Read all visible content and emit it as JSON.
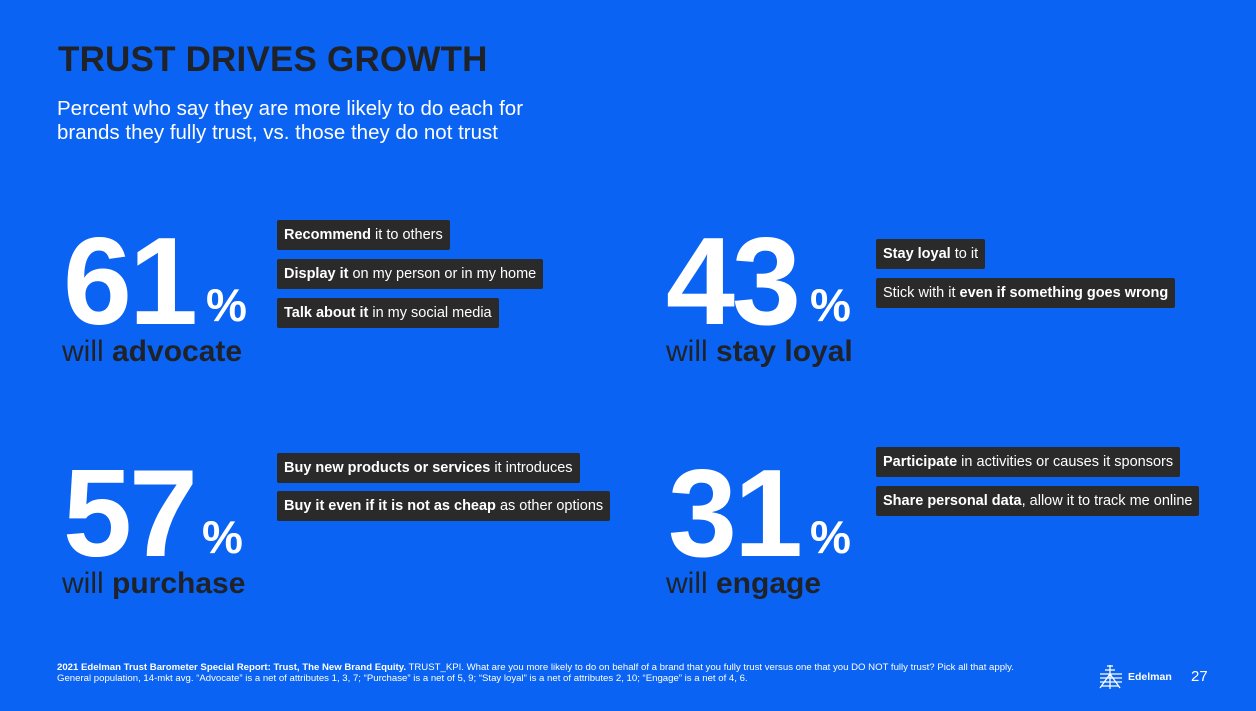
{
  "slide": {
    "title": "TRUST DRIVES GROWTH",
    "subtitle": "Percent who say they are more likely to do each for brands they fully trust, vs. those they do not trust"
  },
  "stats": {
    "advocate": {
      "number": "61",
      "percent": "%",
      "label_prefix": "will ",
      "label_bold": "advocate",
      "chips": [
        {
          "bold": "Recommend",
          "rest": " it to others"
        },
        {
          "bold": "Display it",
          "rest": " on my person or in my home"
        },
        {
          "bold": "Talk about it",
          "rest": " in my social media"
        }
      ]
    },
    "loyal": {
      "number": "43",
      "percent": "%",
      "label_prefix": "will ",
      "label_bold": "stay loyal",
      "chips": [
        {
          "bold": "Stay loyal",
          "rest": " to it"
        },
        {
          "pre": "Stick with it ",
          "bold": "even if something goes wrong"
        }
      ]
    },
    "purchase": {
      "number": "57",
      "percent": "%",
      "label_prefix": "will ",
      "label_bold": "purchase",
      "chips": [
        {
          "bold": "Buy new products or services",
          "rest": " it introduces"
        },
        {
          "bold": "Buy it even if it is not as cheap",
          "rest": " as other options"
        }
      ]
    },
    "engage": {
      "number": "31",
      "percent": "%",
      "label_prefix": "will ",
      "label_bold": "engage",
      "chips": [
        {
          "bold": "Participate",
          "rest": " in activities or causes it sponsors"
        },
        {
          "bold": "Share personal data",
          "rest": ", allow it to track me online"
        }
      ]
    }
  },
  "footer": {
    "source_bold": "2021 Edelman Trust Barometer Special Report: Trust, The New Brand Equity.",
    "source_rest": " TRUST_KPI. What are you more likely to do on behalf of a brand that you fully trust versus one that you DO NOT fully trust? Pick all that apply. General population, 14-mkt avg. “Advocate” is a net of attributes 1, 3, 7; “Purchase” is a net of 5, 9; “Stay loyal” is a net of attributes 2, 10; “Engage” is a net of 4, 6.",
    "logo_text": "Edelman",
    "page_number": "27",
    "logo_icon": "edelman-logo-icon"
  },
  "colors": {
    "background": "#0a63f2",
    "title": "#1f2329",
    "chip": "#2a2a2a",
    "text_light": "#ffffff"
  }
}
